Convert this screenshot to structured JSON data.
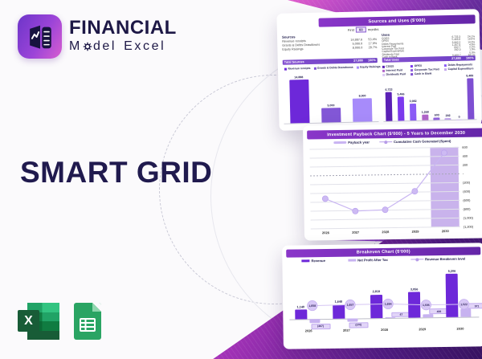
{
  "brand": {
    "title": "FINANCIAL",
    "model_m": "M",
    "model_rest": "del",
    "excel": "Excel"
  },
  "hero_title": "SMART GRID",
  "colors": {
    "accent_purple": "#6d28d9",
    "header_gradient_from": "#8a36c9",
    "header_gradient_to": "#6426a8",
    "magenta": "#d944c4",
    "deep_purple": "#3a1363",
    "navy_text": "#1d1846",
    "excel_green": "#185c37",
    "sheets_green": "#2aa463"
  },
  "cards": {
    "sources_uses": {
      "title": "Sources and Uses ($'000)",
      "first_label": "First",
      "first_value": "60",
      "months_label": "months",
      "sources_heading": "Sources",
      "uses_heading": "Uses",
      "sources_rows": [
        {
          "label": "Revenue receipts",
          "value": "14,887.6",
          "pct": "53.4%"
        },
        {
          "label": "Grants & Debts Drawdowns",
          "value": "5,000.0",
          "pct": "17.9%"
        },
        {
          "label": "Equity Raisings",
          "value": "8,000.0",
          "pct": "28.7%"
        }
      ],
      "sources_total": {
        "label": "Total Sources",
        "value": "27,888",
        "pct": "100%"
      },
      "uses_rows": [
        {
          "label": "COGS",
          "value": "6,723.3",
          "pct": "24.1%"
        },
        {
          "label": "OPEX",
          "value": "5,466.8",
          "pct": "19.6%"
        },
        {
          "label": "Debts Repayments",
          "value": "3,982.2",
          "pct": "14.3%"
        },
        {
          "label": "Interest Paid",
          "value": "1,267.8",
          "pct": "4.6%"
        },
        {
          "label": "Corporate Tax Paid",
          "value": "602.7",
          "pct": "2.2%"
        },
        {
          "label": "Capital Expenditure",
          "value": "292.0",
          "pct": "1.0%"
        },
        {
          "label": "Dividends Paid",
          "value": "-",
          "pct": "0.0%"
        },
        {
          "label": "Cash in Bank",
          "value": "9,488.7",
          "pct": "34.1%"
        }
      ],
      "uses_total": {
        "label": "Total Uses",
        "value": "27,888",
        "pct": "100%"
      }
    },
    "payback": {
      "title": "Investment Payback Chart ($'000) - 5 Years to December 2030"
    },
    "breakeven": {
      "title": "Breakeven Chart ($'000)"
    }
  },
  "chart_data": [
    {
      "id": "sources_bars",
      "type": "bar",
      "categories": [
        "Revenue receipts",
        "Grants & Debts Drawdowns",
        "Equity Raisings"
      ],
      "values": [
        14888,
        5000,
        8000
      ],
      "labels": [
        "14,888",
        "5,000",
        "8,000"
      ],
      "colors": [
        "#6d28d9",
        "#8257d6",
        "#a78bfa"
      ],
      "ylim": [
        0,
        15000
      ],
      "legend_position": "top"
    },
    {
      "id": "uses_bars",
      "type": "bar",
      "categories": [
        "COGS",
        "OPEX",
        "Debts Repayments",
        "Interest Paid",
        "Corporate Tax Paid",
        "Capital Expenditure",
        "Dividends Paid",
        "Cash in Bank"
      ],
      "values": [
        6723,
        5466,
        3982,
        1268,
        603,
        292,
        0,
        9489
      ],
      "labels": [
        "6,723",
        "5,466",
        "3,982",
        "1,268",
        "603",
        "292",
        "0",
        "9,489"
      ],
      "colors": [
        "#5b21b6",
        "#7c3aed",
        "#8b5cf6",
        "#b065c9",
        "#9061dd",
        "#c4a7ee",
        "#d8c7f2",
        "#7e4fd2"
      ],
      "ylim": [
        0,
        10000
      ],
      "legend_position": "top"
    },
    {
      "id": "payback",
      "type": "line",
      "title": "Investment Payback Chart ($'000) - 5 Years to December 2030",
      "legend": [
        "Payback year",
        "Cumulative Cash Generated (Spent)"
      ],
      "x": [
        "2026",
        "2027",
        "2028",
        "2029",
        "2030"
      ],
      "values": [
        -530,
        -820,
        -800,
        -390,
        470
      ],
      "highlight_x": "2030",
      "ytick_labels": [
        "600",
        "400",
        "200",
        "-",
        "(200)",
        "(400)",
        "(600)",
        "(800)",
        "(1,000)",
        "(1,200)"
      ],
      "ylim": [
        -1200,
        600
      ],
      "grid": true,
      "legend_position": "top"
    },
    {
      "id": "breakeven",
      "type": "bar+line",
      "title": "Breakeven Chart ($'000)",
      "categories": [
        "2026",
        "2027",
        "2028",
        "2029",
        "2030"
      ],
      "series": [
        {
          "name": "Revenue",
          "values": [
            1140,
            1648,
            2819,
            3056,
            5206
          ],
          "labels": [
            "1,140",
            "1,648",
            "2,819",
            "3,056",
            "5,206"
          ],
          "color": "#6d28d9"
        },
        {
          "name": "Net Profit After Tax",
          "values": [
            -467,
            -370,
            47,
            406,
            971
          ],
          "labels": [
            "(467)",
            "(370)",
            "47",
            "406",
            "971"
          ],
          "color": "#c7b2f0"
        },
        {
          "name": "Revenue Breakeven level",
          "values": [
            1608,
            1657,
            1694,
            1505,
            1522
          ],
          "labels": [
            "1,608",
            "1,657",
            "1,694",
            "1,505",
            "1,522"
          ],
          "color": "#d8c8f6",
          "marker": "circle"
        }
      ],
      "ylim": [
        -800,
        5600
      ],
      "legend_position": "top"
    }
  ]
}
